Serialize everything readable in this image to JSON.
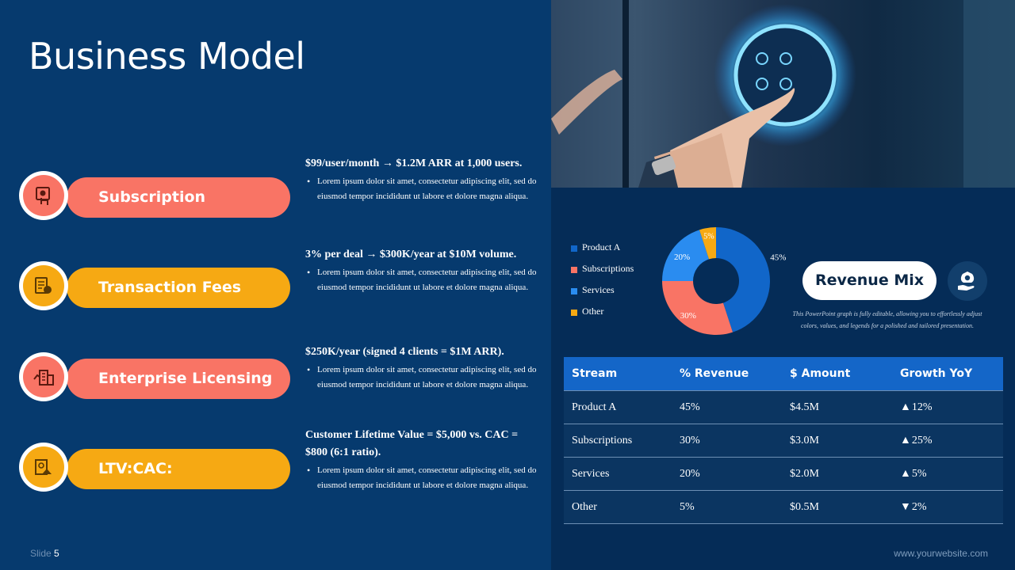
{
  "slide": {
    "title": "Business Model",
    "number_label": "Slide",
    "number": "5",
    "website": "www.yourwebsite.com"
  },
  "items": [
    {
      "label": "Subscription",
      "icon": "subscription-icon",
      "color": "#f97465",
      "head": "$99/user/month → $1.2M ARR at 1,000 users.",
      "body": "Lorem ipsum dolor sit amet, consectetur adipiscing elit, sed do eiusmod tempor incididunt ut labore et dolore magna aliqua."
    },
    {
      "label": "Transaction Fees",
      "icon": "transaction-fees-icon",
      "color": "#f6a913",
      "head": "3% per deal → $300K/year at $10M volume.",
      "body": "Lorem ipsum dolor sit amet, consectetur adipiscing elit, sed do eiusmod tempor incididunt ut labore et dolore magna aliqua."
    },
    {
      "label": "Enterprise Licensing",
      "icon": "enterprise-licensing-icon",
      "color": "#f97465",
      "head": "$250K/year (signed 4 clients = $1M ARR).",
      "body": "Lorem ipsum dolor sit amet, consectetur adipiscing elit, sed do eiusmod tempor incididunt ut labore et dolore magna aliqua."
    },
    {
      "label": "LTV:CAC:",
      "icon": "ltv-cac-icon",
      "color": "#f6a913",
      "head": "Customer Lifetime Value = $5,000 vs. CAC = $800 (6:1 ratio).",
      "body": "Lorem ipsum dolor sit amet, consectetur adipiscing elit, sed do eiusmod tempor incididunt ut labore et dolore magna aliqua."
    }
  ],
  "revenue": {
    "label": "Revenue Mix",
    "icon": "money-hand-icon",
    "note": "This PowerPoint graph is fully editable, allowing you to effortlessly adjust colors, values, and legends for a polished and tailored presentation."
  },
  "chart_data": {
    "type": "pie",
    "style": "donut",
    "categories": [
      "Product A",
      "Subscriptions",
      "Services",
      "Other"
    ],
    "values": [
      45,
      30,
      20,
      5
    ],
    "data_labels": [
      "45%",
      "30%",
      "20%",
      "5%"
    ],
    "colors": [
      "#1166c9",
      "#f97465",
      "#2a8cf0",
      "#f6a913"
    ],
    "legend": "left"
  },
  "table": {
    "headers": [
      "Stream",
      "% Revenue",
      "$ Amount",
      "Growth YoY"
    ],
    "rows": [
      {
        "stream": "Product A",
        "pct": "45%",
        "amount": "$4.5M",
        "trend": "▲",
        "growth": "12%"
      },
      {
        "stream": "Subscriptions",
        "pct": "30%",
        "amount": "$3.0M",
        "trend": "▲",
        "growth": "25%"
      },
      {
        "stream": "Services",
        "pct": "20%",
        "amount": "$2.0M",
        "trend": "▲",
        "growth": "5%"
      },
      {
        "stream": "Other",
        "pct": "5%",
        "amount": "$0.5M",
        "trend": "▼",
        "growth": "2%"
      }
    ]
  }
}
